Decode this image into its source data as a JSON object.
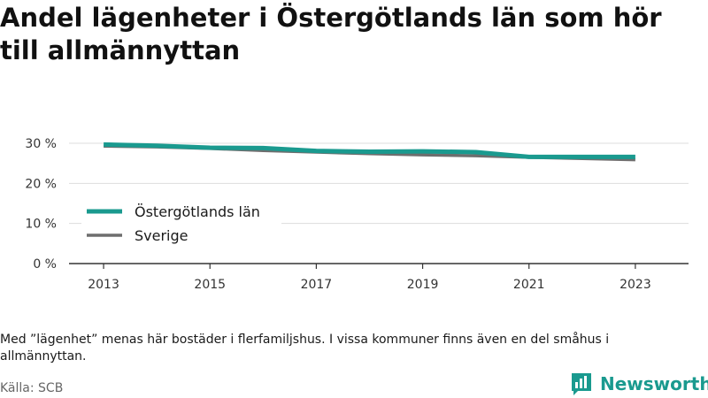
{
  "title": "Andel lägenheter i Östergötlands län som hör till allmännyttan",
  "note": "Med ”lägenhet” menas här bostäder i flerfamiljshus. I vissa kommuner finns även en del småhus i allmännyttan.",
  "source": "Källa: SCB",
  "brand": {
    "name": "Newsworthy",
    "icon": "bar-chart-icon",
    "color": "#1a9a8f"
  },
  "chart_data": {
    "type": "line",
    "title": "Andel lägenheter i Östergötlands län som hör till allmännyttan",
    "xlabel": "",
    "ylabel": "",
    "x": [
      2013,
      2014,
      2015,
      2016,
      2017,
      2018,
      2019,
      2020,
      2021,
      2022,
      2023
    ],
    "x_ticks": [
      "2013",
      "2015",
      "2017",
      "2019",
      "2021",
      "2023"
    ],
    "y_ticks": [
      "0 %",
      "10 %",
      "20 %",
      "30 %"
    ],
    "ylim": [
      0,
      30
    ],
    "grid": true,
    "legend_position": "left",
    "series": [
      {
        "name": "Östergötlands län",
        "color": "#1a9a8f",
        "values": [
          29.7,
          29.4,
          28.9,
          28.8,
          28.1,
          27.9,
          28.0,
          27.8,
          26.6,
          26.6,
          26.6
        ]
      },
      {
        "name": "Sverige",
        "color": "#6e6e6e",
        "values": [
          29.3,
          29.1,
          28.7,
          28.2,
          27.8,
          27.4,
          27.1,
          26.9,
          26.5,
          26.2,
          25.9
        ]
      }
    ]
  }
}
